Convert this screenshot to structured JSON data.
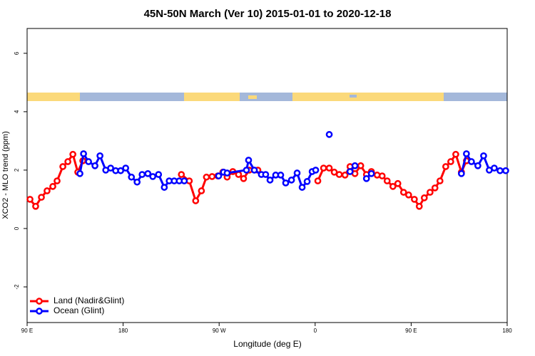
{
  "chart_data": {
    "type": "line",
    "title": "45N-50N March (Ver 10)   2015-01-01 to 2020-12-18",
    "x_label": "Longitude (deg E)",
    "y_label": "XCO2 - MLO trend (ppm)",
    "xlim": [
      90,
      540
    ],
    "ylim": [
      -3.22,
      6.85
    ],
    "xticks": [
      {
        "value": 90,
        "label": "90 E"
      },
      180,
      {
        "value": 270,
        "label": "90 W"
      },
      {
        "value": 360,
        "label": "0"
      },
      {
        "value": 450,
        "label": "90 E"
      },
      {
        "value": 540,
        "label": "180"
      }
    ],
    "yticks": [
      -2,
      0,
      2,
      4,
      6
    ],
    "legend": "bottom-left",
    "series": [
      {
        "name": "Land (Nadir&Glint)",
        "color": "#ff0000",
        "x": [
          92.7,
          98.0,
          103.4,
          108.7,
          114.1,
          118.1,
          123.5,
          128.2,
          132.9,
          137.5,
          142.2,
          null,
          234.6,
          242.0,
          248.0,
          253.4,
          258.1,
          263.4,
          268.8,
          273.5,
          277.5,
          282.8,
          288.2,
          292.9,
          298.2,
          306.3,
          null,
          362.5,
          367.9,
          373.2,
          377.9,
          382.6,
          388.0,
          392.7,
          397.3,
          402.7,
          408.1,
          412.7,
          418.1,
          422.8,
          427.5,
          432.9,
          437.5,
          442.9,
          447.6,
          453.0,
          457.6,
          462.3,
          467.7,
          472.3,
          477.0,
          482.4,
          487.1,
          491.8,
          497.1,
          501.8
        ],
        "values": [
          1.0,
          0.76,
          1.07,
          1.29,
          1.44,
          1.63,
          2.12,
          2.29,
          2.54,
          1.93,
          2.32,
          null,
          1.85,
          1.63,
          0.95,
          1.29,
          1.76,
          1.78,
          1.8,
          1.93,
          1.76,
          1.95,
          1.85,
          1.71,
          2.0,
          2.0,
          null,
          1.63,
          2.07,
          2.07,
          1.93,
          1.85,
          1.83,
          2.12,
          1.88,
          2.15,
          1.85,
          1.95,
          1.83,
          1.8,
          1.63,
          1.44,
          1.54,
          1.24,
          1.15,
          1.0,
          0.76,
          1.05,
          1.24,
          1.39,
          1.63,
          2.12,
          2.29,
          2.54,
          1.93,
          2.32
        ]
      },
      {
        "name": "Ocean (Glint)",
        "color": "#0000ff",
        "x": [
          139.5,
          142.9,
          147.6,
          153.6,
          158.3,
          163.7,
          168.3,
          173.0,
          177.7,
          182.4,
          187.8,
          193.1,
          197.8,
          203.2,
          207.8,
          213.2,
          218.6,
          223.2,
          227.9,
          232.6,
          237.3,
          null,
          269.5,
          274.1,
          277.5,
          295.6,
          297.6,
          303.0,
          309.6,
          313.6,
          317.7,
          323.0,
          327.7,
          332.4,
          337.8,
          343.1,
          347.8,
          352.5,
          357.2,
          360.5,
          null,
          373.2,
          null,
          392.7,
          397.3,
          null,
          408.1,
          412.7,
          null,
          497.1,
          501.8,
          506.5,
          512.5,
          517.9,
          523.2,
          527.9,
          533.3,
          538.6
        ],
        "values": [
          1.88,
          2.56,
          2.29,
          2.15,
          2.49,
          2.0,
          2.07,
          1.98,
          1.98,
          2.07,
          1.76,
          1.59,
          1.85,
          1.88,
          1.78,
          1.85,
          1.41,
          1.63,
          1.63,
          1.63,
          1.63,
          null,
          1.8,
          1.93,
          1.9,
          2.0,
          2.34,
          2.0,
          1.85,
          1.85,
          1.66,
          1.83,
          1.83,
          1.56,
          1.66,
          1.9,
          1.41,
          1.61,
          1.95,
          2.0,
          null,
          3.22,
          null,
          1.95,
          2.15,
          null,
          1.71,
          1.88,
          null,
          1.88,
          2.56,
          2.29,
          2.15,
          2.49,
          2.0,
          2.07,
          1.98,
          1.98
        ]
      }
    ]
  }
}
